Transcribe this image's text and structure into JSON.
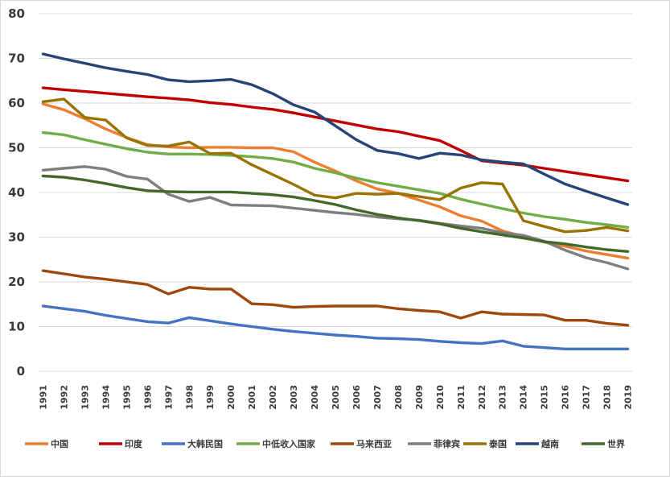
{
  "chart_data": {
    "type": "line",
    "title": "",
    "xlabel": "",
    "ylabel": "",
    "ylim": [
      0,
      80
    ],
    "yticks": [
      0,
      10,
      20,
      30,
      40,
      50,
      60,
      70,
      80
    ],
    "grid": "horizontal",
    "legend": "bottom",
    "x": [
      "1991",
      "1992",
      "1993",
      "1994",
      "1995",
      "1996",
      "1997",
      "1998",
      "1999",
      "2000",
      "2001",
      "2002",
      "2003",
      "2004",
      "2005",
      "2006",
      "2007",
      "2008",
      "2009",
      "2010",
      "2011",
      "2012",
      "2013",
      "2014",
      "2015",
      "2016",
      "2017",
      "2018",
      "2019"
    ],
    "series": [
      {
        "name": "中国",
        "color": "#ed7d31",
        "values": [
          59.8,
          58.5,
          56.5,
          54.2,
          52.3,
          50.7,
          50.2,
          50.0,
          50.1,
          50.1,
          50.0,
          50.0,
          49.1,
          46.8,
          44.8,
          42.6,
          40.8,
          39.8,
          38.3,
          36.8,
          34.8,
          33.6,
          31.4,
          30.2,
          28.9,
          28.0,
          26.9,
          26.1,
          25.3
        ]
      },
      {
        "name": "印度",
        "color": "#c00000",
        "values": [
          63.4,
          63.0,
          62.6,
          62.2,
          61.8,
          61.4,
          61.1,
          60.7,
          60.1,
          59.7,
          59.1,
          58.6,
          57.8,
          56.9,
          56.0,
          55.1,
          54.2,
          53.6,
          52.6,
          51.6,
          49.4,
          47.1,
          46.6,
          46.1,
          45.4,
          44.7,
          44.0,
          43.3,
          42.6
        ]
      },
      {
        "name": "大韩民国",
        "color": "#4472c4",
        "values": [
          14.6,
          14.0,
          13.4,
          12.5,
          11.8,
          11.1,
          10.8,
          12.0,
          11.3,
          10.6,
          10.0,
          9.4,
          8.9,
          8.5,
          8.1,
          7.8,
          7.4,
          7.3,
          7.1,
          6.7,
          6.4,
          6.2,
          6.8,
          5.6,
          5.3,
          5.0,
          5.0,
          5.0,
          5.0
        ]
      },
      {
        "name": "中低收入国家",
        "color": "#70ad47",
        "values": [
          53.4,
          52.9,
          51.8,
          50.8,
          49.8,
          49.0,
          48.6,
          48.6,
          48.5,
          48.3,
          48.0,
          47.6,
          46.8,
          45.4,
          44.4,
          43.2,
          42.2,
          41.4,
          40.6,
          39.8,
          38.5,
          37.4,
          36.4,
          35.4,
          34.6,
          34.0,
          33.3,
          32.8,
          32.2
        ]
      },
      {
        "name": "马来西亚",
        "color": "#9e480e",
        "values": [
          22.5,
          21.8,
          21.1,
          20.6,
          20.0,
          19.4,
          17.3,
          18.8,
          18.4,
          18.4,
          15.1,
          14.9,
          14.3,
          14.5,
          14.6,
          14.6,
          14.6,
          14.0,
          13.6,
          13.3,
          11.9,
          13.3,
          12.8,
          12.7,
          12.6,
          11.4,
          11.4,
          10.7,
          10.3
        ]
      },
      {
        "name": "菲律宾",
        "color": "#7f7f7f",
        "values": [
          45.0,
          45.4,
          45.8,
          45.2,
          43.6,
          43.0,
          39.6,
          38.0,
          38.9,
          37.2,
          37.1,
          37.0,
          36.5,
          36.0,
          35.5,
          35.1,
          34.5,
          34.1,
          33.8,
          33.1,
          32.5,
          32.0,
          31.0,
          30.4,
          29.1,
          27.1,
          25.4,
          24.3,
          22.9
        ]
      },
      {
        "name": "泰国",
        "color": "#997300",
        "values": [
          60.3,
          60.9,
          56.8,
          56.2,
          52.2,
          50.5,
          50.4,
          51.3,
          48.7,
          48.8,
          46.2,
          44.0,
          41.8,
          39.4,
          38.8,
          39.8,
          39.6,
          39.8,
          39.1,
          38.4,
          41.0,
          42.2,
          41.9,
          33.7,
          32.4,
          31.2,
          31.5,
          32.2,
          31.4
        ]
      },
      {
        "name": "越南",
        "color": "#264478",
        "values": [
          71.0,
          69.9,
          68.9,
          67.9,
          67.1,
          66.4,
          65.2,
          64.8,
          65.0,
          65.3,
          64.1,
          62.1,
          59.6,
          58.0,
          54.9,
          51.8,
          49.4,
          48.7,
          47.6,
          48.8,
          48.4,
          47.3,
          46.8,
          46.4,
          44.1,
          41.9,
          40.3,
          38.8,
          37.3
        ]
      },
      {
        "name": "世界",
        "color": "#43682b",
        "values": [
          43.7,
          43.4,
          42.8,
          42.0,
          41.1,
          40.4,
          40.2,
          40.1,
          40.1,
          40.1,
          39.8,
          39.5,
          39.0,
          38.2,
          37.3,
          36.1,
          35.1,
          34.3,
          33.7,
          33.0,
          32.0,
          31.2,
          30.5,
          29.8,
          29.0,
          28.5,
          27.8,
          27.2,
          26.8
        ]
      }
    ]
  }
}
